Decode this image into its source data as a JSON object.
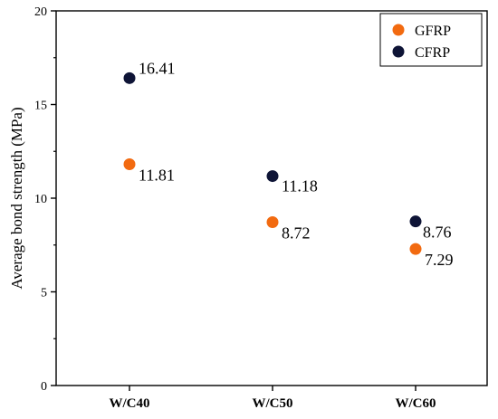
{
  "chart_data": {
    "type": "scatter",
    "categories": [
      "W/C40",
      "W/C50",
      "W/C60"
    ],
    "series": [
      {
        "name": "GFRP",
        "color": "#f26a10",
        "values": [
          11.81,
          8.72,
          7.29
        ],
        "labels": [
          "11.81",
          "8.72",
          "7.29"
        ]
      },
      {
        "name": "CFRP",
        "color": "#0e1436",
        "values": [
          16.41,
          11.18,
          8.76
        ],
        "labels": [
          "16.41",
          "11.18",
          "8.76"
        ]
      }
    ],
    "xlabel": "",
    "ylabel": "Average bond strength (MPa)",
    "ylim": [
      0,
      20
    ],
    "yticks": [
      0,
      5,
      10,
      15,
      20
    ],
    "ytick_labels": [
      "0",
      "5",
      "10",
      "15",
      "20"
    ],
    "grid": false,
    "legend_position": "top-right"
  }
}
